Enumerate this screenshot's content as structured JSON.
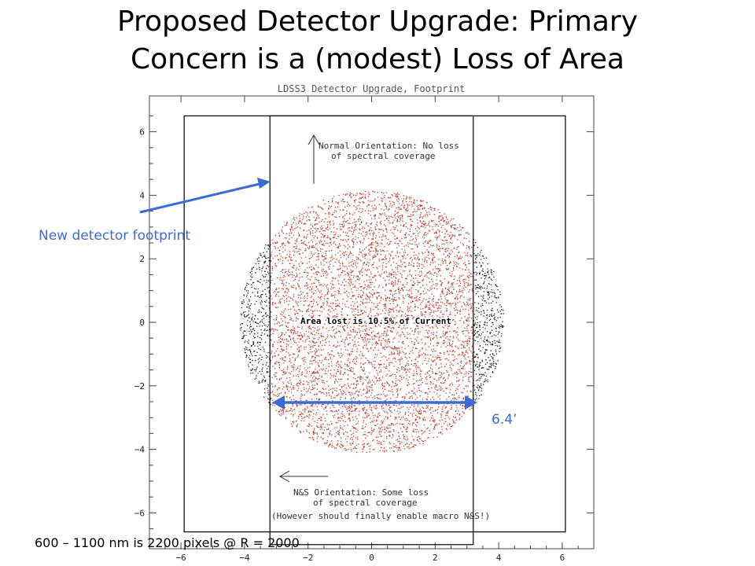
{
  "slide": {
    "title_line1": "Proposed Detector Upgrade: Primary",
    "title_line2": "Concern is a (modest) Loss of Area",
    "callout_footprint": "New detector footprint",
    "callout_width": "6.4’",
    "footnote": "600 – 1100 nm is 2200 pixels @ R = 2000"
  },
  "chart_data": {
    "type": "scatter",
    "title": "LDSS3 Detector Upgrade, Footprint",
    "xlabel": "",
    "ylabel": "",
    "xlim": [
      -7,
      7
    ],
    "ylim": [
      -7,
      7
    ],
    "xticks": [
      "−6",
      "−4",
      "−2",
      "0",
      "2",
      "4",
      "6"
    ],
    "yticks": [
      "−6",
      "−4",
      "−2",
      "0",
      "2",
      "4",
      "6"
    ],
    "grid": false,
    "current_field": {
      "center": [
        0,
        0
      ],
      "radius": 4.15,
      "color": "#222222"
    },
    "outer_frame": {
      "x": [
        -5.9,
        6.1
      ],
      "y": [
        -6.6,
        6.5
      ]
    },
    "new_detector": {
      "x": [
        -3.2,
        3.2
      ],
      "y": [
        -7.0,
        6.5
      ],
      "color": "#c0392b"
    },
    "annotations": {
      "normal": [
        "Normal Orientation: No loss",
        "of spectral coverage"
      ],
      "ns": [
        "N&S Orientation: Some loss",
        "of spectral coverage"
      ],
      "however": "(However should finally enable macro N&S!)",
      "area_lost": "Area lost is 10.5% of Current"
    },
    "colors": {
      "arrow": "#3b6bd6",
      "lost_points": "#222222",
      "kept_points": "#c0392b"
    }
  }
}
